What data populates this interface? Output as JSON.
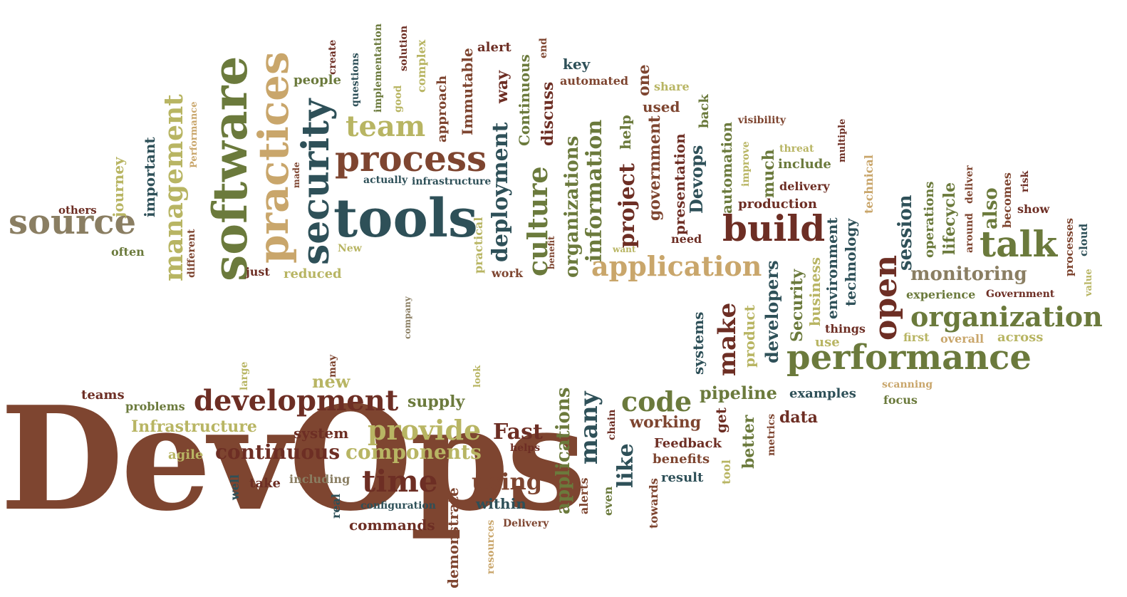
{
  "palette": {
    "brown": "#7e4530",
    "olive": "#6b7a3c",
    "teal": "#2e5058",
    "tan": "#c9a66b",
    "khaki": "#b8b563",
    "maroon": "#6d2e24",
    "gray": "#8a7e62"
  },
  "words": [
    "DevOps",
    "software",
    "tools",
    "practices",
    "security",
    "process",
    "source",
    "build",
    "talk",
    "management",
    "organization",
    "performance",
    "application",
    "development",
    "open",
    "team",
    "culture",
    "deployment",
    "time",
    "code",
    "provide",
    "continuous",
    "components",
    "monitoring",
    "information",
    "project",
    "make",
    "many",
    "using",
    "Fast",
    "also",
    "session",
    "like",
    "journey",
    "important",
    "people",
    "questions",
    "implementation",
    "solution",
    "complex",
    "approach",
    "Immutable",
    "alert",
    "way",
    "Continuous",
    "end",
    "discuss",
    "key",
    "automated",
    "organizations",
    "one",
    "share",
    "help",
    "used",
    "government",
    "presentation",
    "Devops",
    "back",
    "automation",
    "visibility",
    "threat",
    "include",
    "multiple",
    "much",
    "delivery",
    "production",
    "improve",
    "technical",
    "deliver",
    "risk",
    "operations",
    "lifecycle",
    "around",
    "becomes",
    "show",
    "processes",
    "cloud",
    "value",
    "environment",
    "technology",
    "business",
    "Security",
    "developers",
    "product",
    "systems",
    "things",
    "use",
    "first",
    "overall",
    "across",
    "experience",
    "Government",
    "scanning",
    "focus",
    "examples",
    "pipeline",
    "get",
    "metrics",
    "data",
    "better",
    "tool",
    "result",
    "benefits",
    "Feedback",
    "working",
    "chain",
    "applications",
    "alerts",
    "even",
    "towards",
    "within",
    "configuration",
    "Delivery",
    "commands",
    "resources",
    "demonstrate",
    "real",
    "including",
    "take",
    "well",
    "agile",
    "Infrastructure",
    "problems",
    "teams",
    "large",
    "may",
    "new",
    "look",
    "supply",
    "system",
    "helps",
    "company",
    "just",
    "reduced",
    "New",
    "often",
    "different",
    "others",
    "made",
    "create",
    "good",
    "actually",
    "infrastructure",
    "benefit",
    "practical",
    "work",
    "want",
    "need",
    "Performance"
  ]
}
